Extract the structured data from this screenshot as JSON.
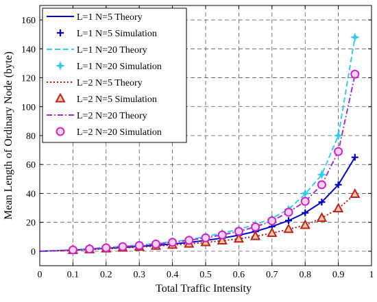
{
  "chart_data": {
    "type": "line",
    "title": "",
    "xlabel": "Total Traffic Intensity",
    "ylabel": "Mean Length of Ordinary Node (byte)",
    "xlim": [
      0,
      1
    ],
    "ylim": [
      -10,
      170
    ],
    "x_ticks": [
      0,
      0.1,
      0.2,
      0.3,
      0.4,
      0.5,
      0.6,
      0.7,
      0.8,
      0.9,
      1
    ],
    "x_tick_labels": [
      "0",
      "0.1",
      "0.2",
      "0.3",
      "0.4",
      "0.5",
      "0.6",
      "0.7",
      "0.8",
      "0.9",
      "1"
    ],
    "y_ticks": [
      0,
      20,
      40,
      60,
      80,
      100,
      120,
      140,
      160
    ],
    "y_tick_labels": [
      "0",
      "20",
      "40",
      "60",
      "80",
      "100",
      "120",
      "140",
      "160"
    ],
    "grid": true,
    "legend_position": "top-left",
    "x": [
      0.1,
      0.15,
      0.2,
      0.25,
      0.3,
      0.35,
      0.4,
      0.45,
      0.5,
      0.55,
      0.6,
      0.65,
      0.7,
      0.75,
      0.8,
      0.85,
      0.9,
      0.95
    ],
    "series": [
      {
        "name": "L=1 N=5   Theory",
        "kind": "theory",
        "color": "#0000cc",
        "dash": "",
        "values": [
          0.8,
          1.4,
          2.0,
          2.6,
          3.3,
          4.1,
          5.0,
          6.1,
          7.5,
          9.1,
          11.1,
          13.7,
          17.1,
          21.2,
          26.6,
          34.0,
          46.0,
          65.0
        ]
      },
      {
        "name": "L=1 N=5   Simulation",
        "kind": "sim",
        "marker": "plus",
        "color": "#0000cc",
        "values": [
          0.8,
          1.4,
          2.0,
          2.6,
          3.3,
          4.1,
          5.0,
          6.1,
          7.5,
          9.1,
          11.1,
          13.7,
          17.1,
          21.2,
          26.6,
          34.0,
          46.0,
          65.0
        ]
      },
      {
        "name": "L=1 N=20 Theory",
        "kind": "theory",
        "color": "#33ccee",
        "dash": "8,4",
        "values": [
          1.0,
          1.8,
          2.6,
          3.4,
          4.3,
          5.3,
          6.5,
          8.0,
          10.2,
          12.5,
          15.2,
          18.4,
          22.8,
          29.0,
          39.5,
          53.0,
          80.0,
          148.0
        ]
      },
      {
        "name": "L=1 N=20 Simulation",
        "kind": "sim",
        "marker": "star",
        "color": "#33ccee",
        "values": [
          1.0,
          1.8,
          2.6,
          3.4,
          4.3,
          5.3,
          6.5,
          8.0,
          10.2,
          12.5,
          15.2,
          18.4,
          22.8,
          29.0,
          40.0,
          53.0,
          80.0,
          148.0
        ]
      },
      {
        "name": "L=2 N=5   Theory",
        "kind": "theory",
        "color": "#aa1111",
        "dash": "2,3",
        "values": [
          0.7,
          1.2,
          1.8,
          2.3,
          2.9,
          3.6,
          4.3,
          5.1,
          6.1,
          7.3,
          8.6,
          10.3,
          12.5,
          15.2,
          18.0,
          23.0,
          29.5,
          39.5
        ]
      },
      {
        "name": "L=2 N=5   Simulation",
        "kind": "sim",
        "marker": "triangle",
        "color": "#bb2222",
        "values": [
          0.7,
          1.2,
          1.8,
          2.3,
          2.9,
          3.6,
          4.3,
          5.1,
          6.1,
          7.3,
          8.6,
          10.3,
          12.5,
          15.2,
          18.0,
          23.0,
          29.5,
          39.5
        ]
      },
      {
        "name": "L=2 N=20 Theory",
        "kind": "theory",
        "color": "#9933cc",
        "dash": "8,3,2,3",
        "values": [
          0.9,
          1.6,
          2.4,
          3.2,
          4.0,
          5.0,
          6.2,
          7.6,
          9.3,
          11.3,
          13.8,
          16.8,
          21.0,
          27.0,
          34.5,
          46.0,
          69.0,
          122.0
        ]
      },
      {
        "name": "L=2 N=20 Simulation",
        "kind": "sim",
        "marker": "circle",
        "color": "#cc22cc",
        "values": [
          0.9,
          1.6,
          2.4,
          3.2,
          4.0,
          5.0,
          6.2,
          7.6,
          9.3,
          11.3,
          13.8,
          16.8,
          21.0,
          27.0,
          34.5,
          46.0,
          69.0,
          122.5
        ]
      }
    ]
  }
}
